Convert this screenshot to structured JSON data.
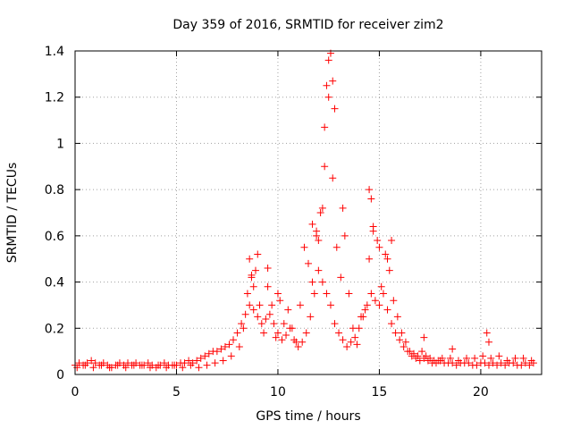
{
  "chart_data": {
    "type": "scatter",
    "title": "Day 359 of 2016, SRMTID for receiver zim2",
    "xlabel": "GPS time / hours",
    "ylabel": "SRMTID / TECUs",
    "xlim": [
      0,
      23
    ],
    "ylim": [
      0,
      1.4
    ],
    "xticks": [
      0,
      5,
      10,
      15,
      20
    ],
    "yticks": [
      0,
      0.2,
      0.4,
      0.6,
      0.8,
      1,
      1.2,
      1.4
    ],
    "xtick_labels": [
      "0",
      "5",
      "10",
      "15",
      "20"
    ],
    "ytick_labels": [
      "0",
      "0.2",
      "0.4",
      "0.6",
      "0.8",
      "1",
      "1.2",
      "1.4"
    ],
    "grid": true,
    "marker": "+",
    "marker_color": "#ff0000",
    "series": [
      {
        "name": "zim2",
        "x": [
          0.0,
          0.2,
          0.4,
          0.6,
          0.8,
          1.0,
          1.2,
          1.4,
          1.6,
          1.8,
          2.0,
          2.2,
          2.4,
          2.6,
          2.8,
          3.0,
          3.2,
          3.4,
          3.6,
          3.8,
          4.0,
          4.2,
          4.4,
          4.6,
          4.8,
          5.0,
          5.2,
          5.4,
          5.6,
          5.8,
          6.0,
          6.2,
          6.4,
          6.6,
          6.8,
          7.0,
          7.2,
          7.4,
          7.6,
          7.8,
          8.0,
          8.2,
          8.4,
          8.6,
          8.8,
          9.0,
          9.2,
          9.4,
          9.6,
          9.8,
          10.0,
          10.2,
          10.4,
          10.6,
          10.8,
          11.0,
          11.2,
          11.4,
          11.6,
          11.8,
          12.0,
          12.2,
          12.4,
          12.6,
          12.8,
          13.0,
          13.2,
          13.4,
          13.6,
          13.8,
          14.0,
          14.2,
          14.4,
          14.6,
          14.8,
          15.0,
          15.2,
          15.4,
          15.6,
          15.8,
          16.0,
          16.2,
          16.4,
          16.6,
          16.8,
          17.0,
          17.2,
          17.4,
          17.6,
          17.8,
          18.0,
          18.2,
          18.4,
          18.6,
          18.8,
          19.0,
          19.2,
          19.4,
          19.6,
          19.8,
          20.0,
          20.2,
          20.4,
          20.6,
          20.8,
          21.0,
          21.2,
          21.4,
          21.6,
          21.8,
          22.0,
          22.2,
          22.4,
          22.6,
          0.1,
          0.5,
          0.9,
          1.3,
          1.7,
          2.1,
          2.5,
          2.9,
          3.3,
          3.7,
          4.1,
          4.5,
          4.9,
          5.3,
          5.7,
          6.1,
          6.5,
          6.9,
          7.3,
          7.7,
          8.1,
          8.3,
          8.5,
          8.7,
          8.9,
          9.1,
          9.3,
          9.5,
          9.7,
          9.9,
          10.1,
          10.3,
          10.5,
          10.7,
          10.9,
          11.1,
          11.3,
          11.5,
          11.7,
          11.9,
          12.1,
          12.3,
          12.5,
          12.7,
          12.9,
          13.1,
          13.3,
          13.5,
          13.7,
          13.9,
          14.1,
          14.3,
          14.5,
          14.7,
          14.9,
          15.1,
          15.3,
          15.5,
          15.7,
          15.9,
          16.1,
          16.3,
          16.5,
          16.7,
          16.9,
          17.1,
          17.3,
          17.5,
          17.7,
          17.9,
          18.1,
          18.5,
          18.9,
          19.3,
          19.7,
          20.1,
          20.5,
          20.9,
          21.3,
          21.7,
          22.1,
          22.5,
          8.6,
          8.7,
          8.8,
          9.0,
          9.5,
          10.0,
          11.7,
          11.9,
          12.0,
          12.2,
          12.3,
          12.4,
          12.5,
          12.6,
          12.7,
          12.8,
          13.2,
          14.5,
          14.6,
          14.7,
          15.0,
          15.4,
          15.6,
          17.2,
          18.6,
          20.3,
          20.4
        ],
        "y": [
          0.04,
          0.05,
          0.04,
          0.05,
          0.06,
          0.05,
          0.04,
          0.05,
          0.04,
          0.03,
          0.04,
          0.05,
          0.04,
          0.05,
          0.04,
          0.05,
          0.04,
          0.04,
          0.05,
          0.04,
          0.03,
          0.04,
          0.05,
          0.04,
          0.04,
          0.04,
          0.05,
          0.05,
          0.06,
          0.05,
          0.06,
          0.07,
          0.08,
          0.09,
          0.1,
          0.1,
          0.11,
          0.12,
          0.13,
          0.15,
          0.18,
          0.22,
          0.26,
          0.3,
          0.28,
          0.25,
          0.22,
          0.24,
          0.26,
          0.22,
          0.18,
          0.15,
          0.17,
          0.2,
          0.15,
          0.12,
          0.14,
          0.18,
          0.25,
          0.35,
          0.45,
          0.4,
          0.35,
          0.3,
          0.22,
          0.18,
          0.15,
          0.12,
          0.14,
          0.16,
          0.2,
          0.25,
          0.3,
          0.35,
          0.32,
          0.3,
          0.35,
          0.28,
          0.22,
          0.18,
          0.15,
          0.12,
          0.1,
          0.08,
          0.07,
          0.06,
          0.07,
          0.06,
          0.05,
          0.05,
          0.06,
          0.05,
          0.05,
          0.05,
          0.04,
          0.05,
          0.05,
          0.05,
          0.04,
          0.04,
          0.05,
          0.05,
          0.04,
          0.05,
          0.04,
          0.05,
          0.04,
          0.05,
          0.05,
          0.04,
          0.04,
          0.05,
          0.04,
          0.05,
          0.03,
          0.04,
          0.03,
          0.04,
          0.03,
          0.04,
          0.03,
          0.04,
          0.04,
          0.03,
          0.04,
          0.03,
          0.04,
          0.03,
          0.04,
          0.03,
          0.04,
          0.05,
          0.06,
          0.08,
          0.12,
          0.2,
          0.35,
          0.42,
          0.45,
          0.3,
          0.18,
          0.38,
          0.3,
          0.16,
          0.32,
          0.22,
          0.28,
          0.2,
          0.14,
          0.3,
          0.55,
          0.48,
          0.4,
          0.6,
          0.7,
          0.9,
          1.2,
          0.85,
          0.55,
          0.42,
          0.6,
          0.35,
          0.2,
          0.13,
          0.25,
          0.28,
          0.5,
          0.62,
          0.58,
          0.38,
          0.52,
          0.45,
          0.32,
          0.25,
          0.18,
          0.14,
          0.1,
          0.09,
          0.08,
          0.1,
          0.08,
          0.07,
          0.06,
          0.06,
          0.07,
          0.07,
          0.06,
          0.07,
          0.07,
          0.08,
          0.07,
          0.08,
          0.06,
          0.07,
          0.07,
          0.06,
          0.5,
          0.43,
          0.38,
          0.52,
          0.46,
          0.35,
          0.65,
          0.62,
          0.58,
          0.72,
          1.07,
          1.25,
          1.36,
          1.39,
          1.27,
          1.15,
          0.72,
          0.8,
          0.76,
          0.64,
          0.55,
          0.5,
          0.58,
          0.16,
          0.11,
          0.18,
          0.14
        ]
      }
    ]
  }
}
